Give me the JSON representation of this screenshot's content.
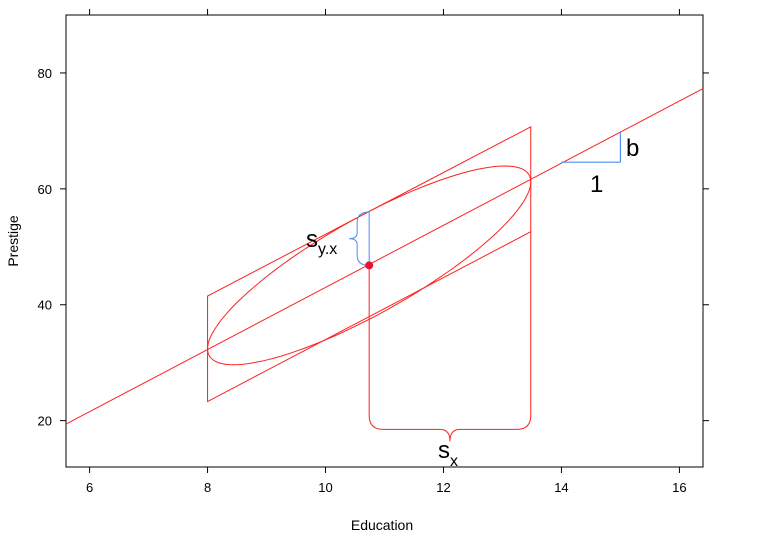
{
  "chart_data": {
    "type": "scatter",
    "title": "",
    "xlabel": "Education",
    "ylabel": "Prestige",
    "xlim": [
      5.6,
      16.4
    ],
    "ylim": [
      12,
      90
    ],
    "x_ticks": [
      6,
      8,
      10,
      12,
      14,
      16
    ],
    "y_ticks": [
      20,
      40,
      60,
      80
    ],
    "x_tick_labels": [
      "6",
      "8",
      "10",
      "12",
      "14",
      "16"
    ],
    "y_tick_labels": [
      "20",
      "40",
      "60",
      "80"
    ],
    "grid": false,
    "colors": {
      "fit": "#ff2020",
      "annotation": "#4d8df5",
      "point": "#e8132f",
      "axis": "#000000"
    },
    "regression_line": {
      "x": [
        5.6,
        16.4
      ],
      "y": [
        19.4,
        77.3
      ]
    },
    "mean_point": {
      "x": 10.74,
      "y": 46.8
    },
    "data_ellipse": {
      "center": [
        10.74,
        46.8
      ],
      "x_range": [
        8.0,
        13.48
      ],
      "y_range": [
        29.7,
        64.0
      ]
    },
    "parallelogram": {
      "left_x": 8.0,
      "right_x": 13.48,
      "left_y": [
        23.3,
        41.5
      ],
      "right_y": [
        52.6,
        70.7
      ]
    },
    "sx_brace": {
      "x_from": 10.74,
      "x_to": 13.48,
      "y": 18.5
    },
    "syx_brace": {
      "x": 10.74,
      "y_from": 46.8,
      "y_to": 56.0
    },
    "slope_triangle": {
      "x_from": 14.0,
      "x_to": 15.0,
      "y_base": 64.6,
      "y_top": 69.7
    }
  },
  "annotations": {
    "sx_main": "s",
    "sx_sub": "x",
    "syx_main": "s",
    "syx_sub": "y.x",
    "slope_run": "1",
    "slope_rise": "b"
  }
}
